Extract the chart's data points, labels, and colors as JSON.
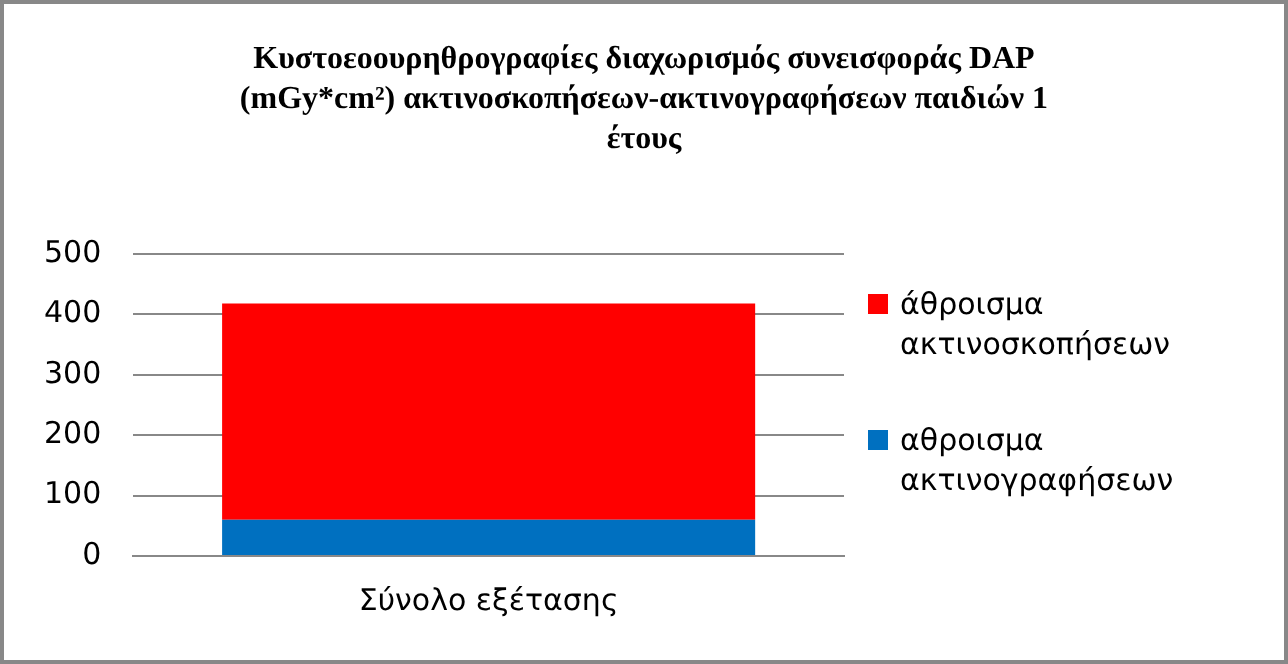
{
  "chart_data": {
    "type": "bar",
    "title": "Κυστοεοουρηθρογραφίες διαχωρισμός συνεισφοράς DAP (mGy*cm²) ακτινοσκοπήσεων-ακτινογραφήσεων παιδιών 1 έτους",
    "categories": [
      "Σύνολο εξέτασης"
    ],
    "stacked": true,
    "series": [
      {
        "name": "αθροισμα ακτινογραφήσεων",
        "color": "#0070c0",
        "values": [
          60
        ]
      },
      {
        "name": "άθροισμα ακτινοσκοπήσεων",
        "color": "#ff0000",
        "values": [
          358
        ]
      }
    ],
    "ylim": [
      0,
      500
    ],
    "yticks": [
      0,
      100,
      200,
      300,
      400,
      500
    ],
    "grid": "y",
    "legend": "right"
  }
}
